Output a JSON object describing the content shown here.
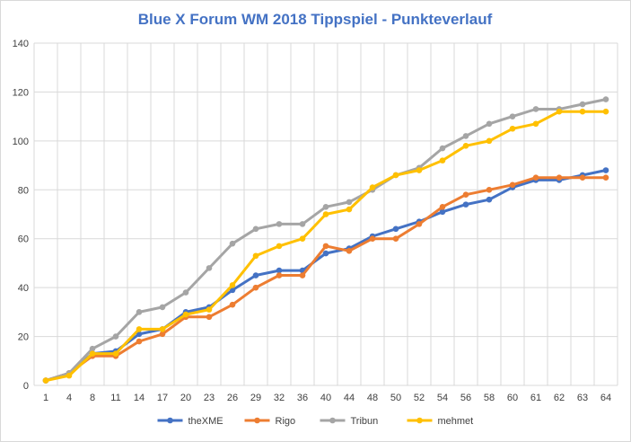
{
  "chart_data": {
    "type": "line",
    "title": "Blue X Forum WM 2018 Tippspiel - Punkteverlauf",
    "xlabel": "",
    "ylabel": "",
    "ylim": [
      0,
      140
    ],
    "yticks": [
      0,
      20,
      40,
      60,
      80,
      100,
      120,
      140
    ],
    "grid": true,
    "legend_position": "bottom",
    "categories": [
      "1",
      "4",
      "8",
      "11",
      "14",
      "17",
      "20",
      "23",
      "26",
      "29",
      "32",
      "36",
      "40",
      "44",
      "48",
      "50",
      "52",
      "54",
      "56",
      "58",
      "60",
      "61",
      "62",
      "63",
      "64"
    ],
    "series": [
      {
        "name": "theXME",
        "color": "#4472c4",
        "values": [
          2,
          5,
          13,
          14,
          21,
          23,
          30,
          32,
          39,
          45,
          47,
          47,
          54,
          56,
          61,
          64,
          67,
          71,
          74,
          76,
          81,
          84,
          84,
          86,
          88
        ]
      },
      {
        "name": "Rigo",
        "color": "#ed7d31",
        "values": [
          2,
          5,
          12,
          12,
          18,
          21,
          28,
          28,
          33,
          40,
          45,
          45,
          57,
          55,
          60,
          60,
          66,
          73,
          78,
          80,
          82,
          85,
          85,
          85,
          85
        ]
      },
      {
        "name": "Tribun",
        "color": "#a5a5a5",
        "values": [
          2,
          5,
          15,
          20,
          30,
          32,
          38,
          48,
          58,
          64,
          66,
          66,
          73,
          75,
          80,
          86,
          89,
          97,
          102,
          107,
          110,
          113,
          113,
          115,
          117
        ]
      },
      {
        "name": "mehmet",
        "color": "#ffc000",
        "values": [
          2,
          4,
          13,
          13,
          23,
          23,
          29,
          31,
          41,
          53,
          57,
          60,
          70,
          72,
          81,
          86,
          88,
          92,
          98,
          100,
          105,
          107,
          112,
          112,
          112
        ]
      }
    ]
  }
}
